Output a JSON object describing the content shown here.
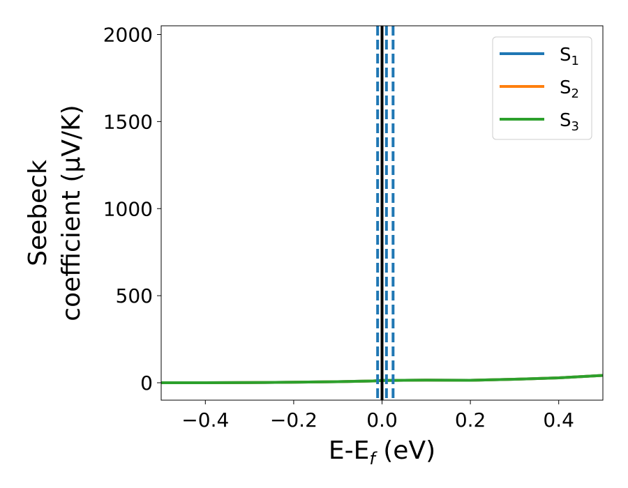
{
  "chart_data": {
    "type": "line",
    "xlabel": {
      "main": "E-E",
      "sub": "f",
      "unit": " (eV)"
    },
    "ylabel": {
      "line1": "Seebeck",
      "line2": "coefficient  (μV/K)"
    },
    "xlim": [
      -0.5,
      0.5
    ],
    "ylim": [
      -100,
      2050
    ],
    "xticks": [
      -0.4,
      -0.2,
      0.0,
      0.2,
      0.4
    ],
    "xtick_labels": [
      "−0.4",
      "−0.2",
      "0.0",
      "0.2",
      "0.4"
    ],
    "yticks": [
      0,
      500,
      1000,
      1500,
      2000
    ],
    "ytick_labels": [
      "0",
      "500",
      "1000",
      "1500",
      "2000"
    ],
    "grid": false,
    "legend": "top-right",
    "series": [
      {
        "name": "S",
        "sub": "1",
        "color": "#1f77b4",
        "x": [
          -0.5,
          -0.4,
          -0.3,
          -0.2,
          -0.1,
          -0.02,
          0.0,
          0.1,
          0.2,
          0.3,
          0.4,
          0.5
        ],
        "y": [
          0,
          0,
          1,
          3,
          6,
          10,
          13,
          15,
          14,
          20,
          28,
          42
        ]
      },
      {
        "name": "S",
        "sub": "2",
        "color": "#ff7f0e",
        "x": [
          -0.5,
          -0.4,
          -0.3,
          -0.2,
          -0.1,
          -0.02,
          0.0,
          0.1,
          0.2,
          0.3,
          0.4,
          0.5
        ],
        "y": [
          0,
          0,
          1,
          3,
          6,
          10,
          13,
          15,
          14,
          20,
          28,
          42
        ]
      },
      {
        "name": "S",
        "sub": "3",
        "color": "#2ca02c",
        "x": [
          -0.5,
          -0.4,
          -0.3,
          -0.2,
          -0.1,
          -0.02,
          0.0,
          0.1,
          0.2,
          0.3,
          0.4,
          0.5
        ],
        "y": [
          0,
          0,
          1,
          3,
          6,
          10,
          13,
          15,
          14,
          20,
          28,
          42
        ]
      }
    ],
    "vlines": [
      {
        "x": 0.0,
        "style": "solid",
        "color": "#000000"
      },
      {
        "x": -0.01,
        "style": "dashed",
        "color": "#1f77b4"
      },
      {
        "x": 0.01,
        "style": "dashed",
        "color": "#1f77b4"
      },
      {
        "x": 0.025,
        "style": "dashed",
        "color": "#1f77b4"
      }
    ]
  }
}
